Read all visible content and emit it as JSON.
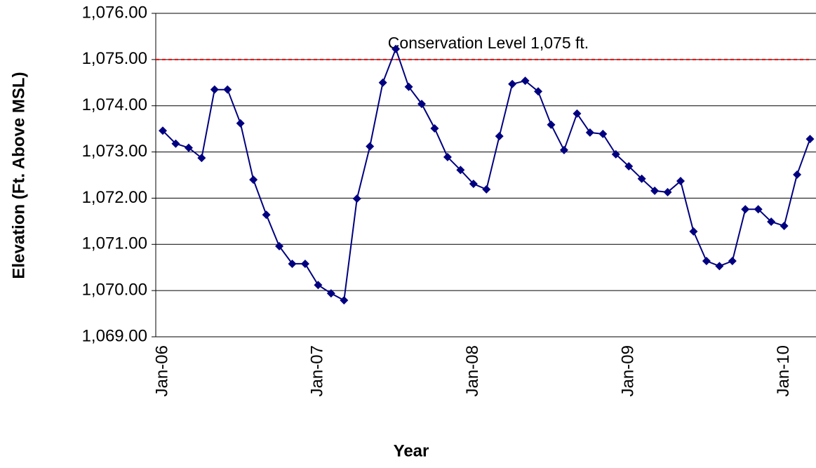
{
  "chart_data": {
    "type": "line",
    "y_label": "Elevation (Ft. Above MSL)",
    "x_label": "Year",
    "categories": [
      "Jan-06",
      null,
      null,
      null,
      null,
      null,
      null,
      null,
      null,
      null,
      null,
      null,
      "Jan-07",
      null,
      null,
      null,
      null,
      null,
      null,
      null,
      null,
      null,
      null,
      null,
      "Jan-08",
      null,
      null,
      null,
      null,
      null,
      null,
      null,
      null,
      null,
      null,
      null,
      "Jan-09",
      null,
      null,
      null,
      null,
      null,
      null,
      null,
      null,
      null,
      null,
      null,
      "Jan-10",
      null,
      null
    ],
    "series": [
      {
        "name": "Elevation",
        "color": "#000080",
        "values": [
          1073.46,
          1073.18,
          1073.09,
          1072.87,
          1074.35,
          1074.35,
          1073.62,
          1072.4,
          1071.64,
          1070.96,
          1070.58,
          1070.58,
          1070.12,
          1069.94,
          1069.79,
          1071.99,
          1073.12,
          1074.5,
          1075.23,
          1074.41,
          1074.04,
          1073.51,
          1072.89,
          1072.61,
          1072.31,
          1072.19,
          1073.34,
          1074.47,
          1074.54,
          1074.31,
          1073.59,
          1073.04,
          1073.83,
          1073.42,
          1073.39,
          1072.95,
          1072.69,
          1072.42,
          1072.16,
          1072.13,
          1072.37,
          1071.28,
          1070.64,
          1070.53,
          1070.64,
          1071.76,
          1071.76,
          1071.49,
          1071.4,
          1072.51,
          1073.28
        ]
      }
    ],
    "reference_line": {
      "value": 1075,
      "label": "Conservation Level 1,075 ft.",
      "color": "#ff0000"
    },
    "ylim": [
      1069,
      1076
    ],
    "yticks": [
      {
        "value": 1069,
        "label": "1,069.00"
      },
      {
        "value": 1070,
        "label": "1,070.00"
      },
      {
        "value": 1071,
        "label": "1,071.00"
      },
      {
        "value": 1072,
        "label": "1,072.00"
      },
      {
        "value": 1073,
        "label": "1,073.00"
      },
      {
        "value": 1074,
        "label": "1,074.00"
      },
      {
        "value": 1075,
        "label": "1,075.00"
      },
      {
        "value": 1076,
        "label": "1,076.00"
      }
    ],
    "grid": true
  }
}
